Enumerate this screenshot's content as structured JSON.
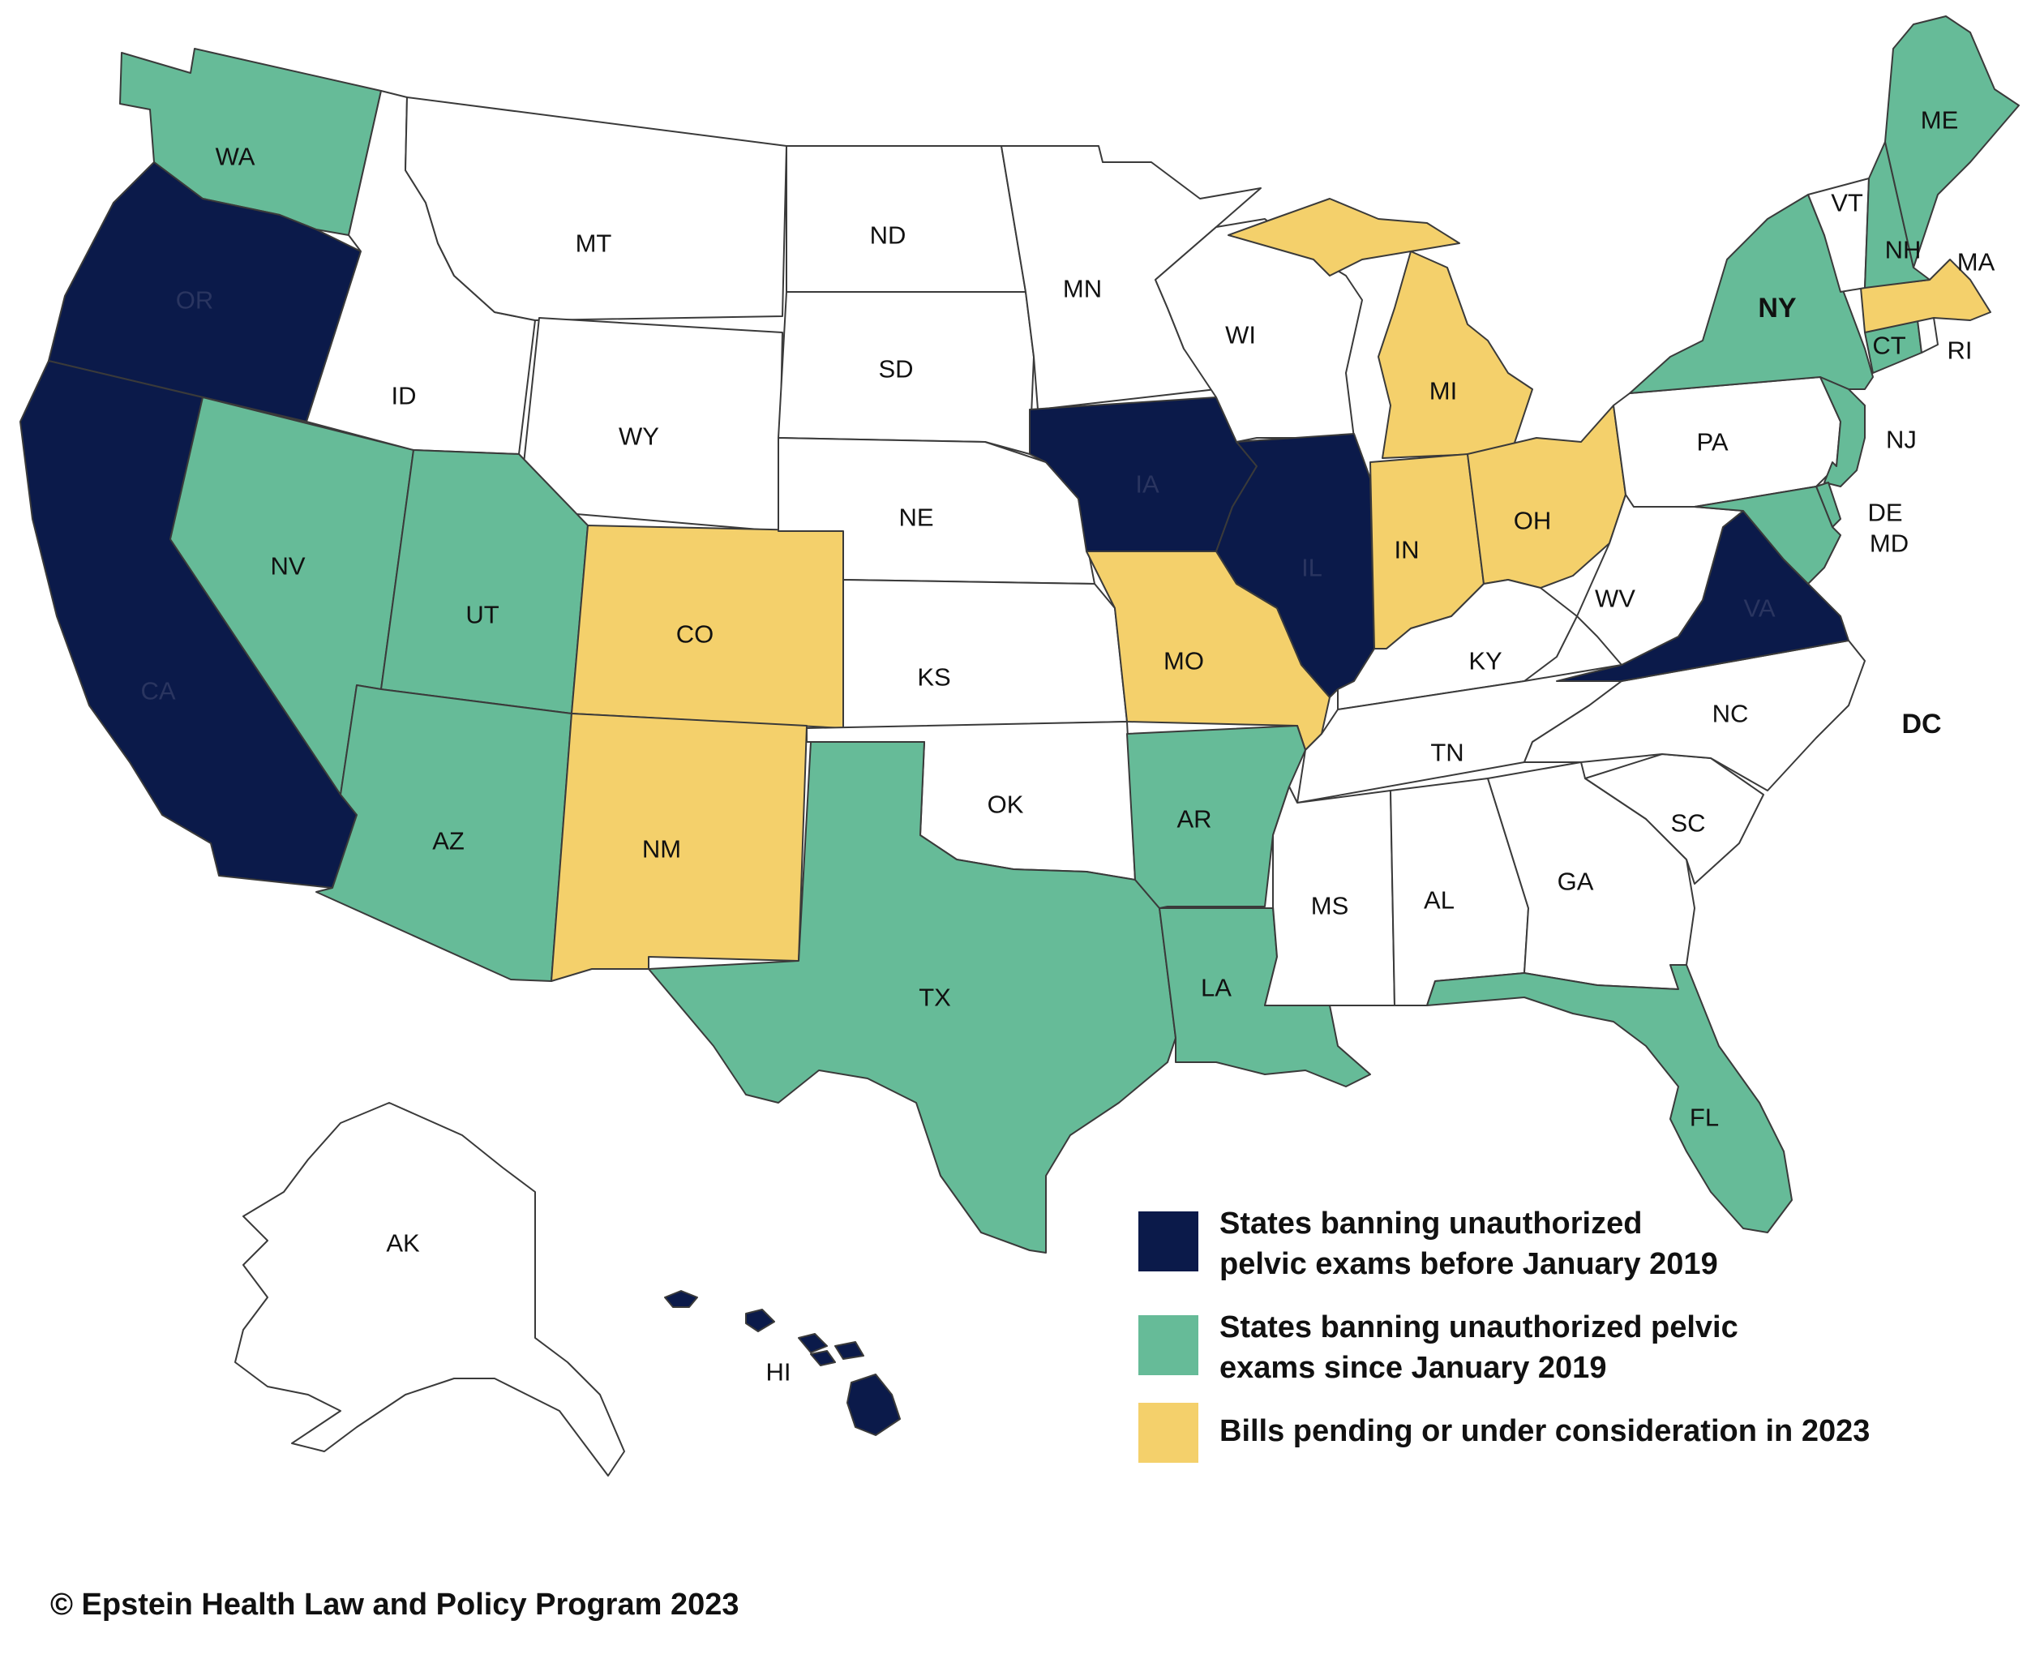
{
  "colors": {
    "before_2019": "#0b1a4a",
    "since_2019": "#66bb98",
    "pending_2023": "#f4d06b",
    "none": "#ffffff",
    "border": "#3a3a3a"
  },
  "states": [
    {
      "abbr": "WA",
      "status": "since_2019"
    },
    {
      "abbr": "OR",
      "status": "before_2019"
    },
    {
      "abbr": "CA",
      "status": "before_2019"
    },
    {
      "abbr": "NV",
      "status": "since_2019"
    },
    {
      "abbr": "ID",
      "status": "none"
    },
    {
      "abbr": "MT",
      "status": "none"
    },
    {
      "abbr": "WY",
      "status": "none"
    },
    {
      "abbr": "UT",
      "status": "since_2019"
    },
    {
      "abbr": "AZ",
      "status": "since_2019"
    },
    {
      "abbr": "CO",
      "status": "pending_2023"
    },
    {
      "abbr": "NM",
      "status": "pending_2023"
    },
    {
      "abbr": "ND",
      "status": "none"
    },
    {
      "abbr": "SD",
      "status": "none"
    },
    {
      "abbr": "NE",
      "status": "none"
    },
    {
      "abbr": "KS",
      "status": "none"
    },
    {
      "abbr": "OK",
      "status": "none"
    },
    {
      "abbr": "TX",
      "status": "since_2019"
    },
    {
      "abbr": "MN",
      "status": "none"
    },
    {
      "abbr": "IA",
      "status": "before_2019"
    },
    {
      "abbr": "MO",
      "status": "pending_2023"
    },
    {
      "abbr": "AR",
      "status": "since_2019"
    },
    {
      "abbr": "LA",
      "status": "since_2019"
    },
    {
      "abbr": "WI",
      "status": "none"
    },
    {
      "abbr": "IL",
      "status": "before_2019"
    },
    {
      "abbr": "MI",
      "status": "pending_2023"
    },
    {
      "abbr": "IN",
      "status": "pending_2023"
    },
    {
      "abbr": "OH",
      "status": "pending_2023"
    },
    {
      "abbr": "KY",
      "status": "none"
    },
    {
      "abbr": "TN",
      "status": "none"
    },
    {
      "abbr": "MS",
      "status": "none"
    },
    {
      "abbr": "AL",
      "status": "none"
    },
    {
      "abbr": "GA",
      "status": "none"
    },
    {
      "abbr": "FL",
      "status": "since_2019"
    },
    {
      "abbr": "SC",
      "status": "none"
    },
    {
      "abbr": "NC",
      "status": "none"
    },
    {
      "abbr": "VA",
      "status": "before_2019"
    },
    {
      "abbr": "WV",
      "status": "none"
    },
    {
      "abbr": "PA",
      "status": "none"
    },
    {
      "abbr": "NY",
      "status": "since_2019"
    },
    {
      "abbr": "NJ",
      "status": "since_2019"
    },
    {
      "abbr": "DE",
      "status": "since_2019"
    },
    {
      "abbr": "MD",
      "status": "since_2019"
    },
    {
      "abbr": "CT",
      "status": "since_2019"
    },
    {
      "abbr": "RI",
      "status": "none"
    },
    {
      "abbr": "MA",
      "status": "pending_2023"
    },
    {
      "abbr": "VT",
      "status": "none"
    },
    {
      "abbr": "NH",
      "status": "since_2019"
    },
    {
      "abbr": "ME",
      "status": "since_2019"
    },
    {
      "abbr": "AK",
      "status": "none"
    },
    {
      "abbr": "HI",
      "status": "before_2019"
    },
    {
      "abbr": "DC",
      "status": "none"
    }
  ],
  "legend": [
    {
      "key": "before_2019",
      "line1": "States banning unauthorized",
      "line2": "pelvic exams before January 2019"
    },
    {
      "key": "since_2019",
      "line1": "States banning unauthorized pelvic",
      "line2": "exams since January 2019"
    },
    {
      "key": "pending_2023",
      "line1": "Bills pending or under consideration in 2023",
      "line2": ""
    }
  ],
  "copyright": "© Epstein Health Law and Policy Program 2023"
}
